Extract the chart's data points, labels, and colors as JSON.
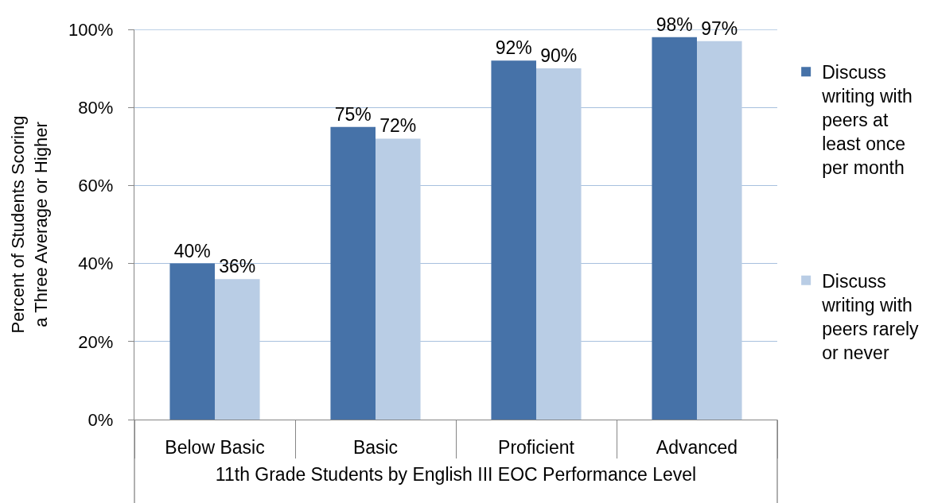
{
  "chart_data": {
    "type": "bar",
    "xlabel": "11th Grade Students by English III EOC Performance Level",
    "ylabel": "Percent of Students Scoring a Three Average or Higher",
    "categories": [
      "Below Basic",
      "Basic",
      "Proficient",
      "Advanced"
    ],
    "series": [
      {
        "name": "Discuss writing with peers at least once per month",
        "color": "#4672a8",
        "values": [
          40,
          75,
          92,
          98
        ],
        "value_labels": [
          "40%",
          "75%",
          "92%",
          "98%"
        ]
      },
      {
        "name": "Discuss writing with peers rarely or never",
        "color": "#b9cde5",
        "values": [
          36,
          72,
          90,
          97
        ],
        "value_labels": [
          "36%",
          "72%",
          "90%",
          "97%"
        ]
      }
    ],
    "ylim": [
      0,
      100
    ],
    "yticks": [
      {
        "value": 0,
        "label": "0%"
      },
      {
        "value": 20,
        "label": "20%"
      },
      {
        "value": 40,
        "label": "40%"
      },
      {
        "value": 60,
        "label": "60%"
      },
      {
        "value": 80,
        "label": "80%"
      },
      {
        "value": 100,
        "label": "100%"
      }
    ],
    "grid": "y",
    "legend": "right"
  }
}
